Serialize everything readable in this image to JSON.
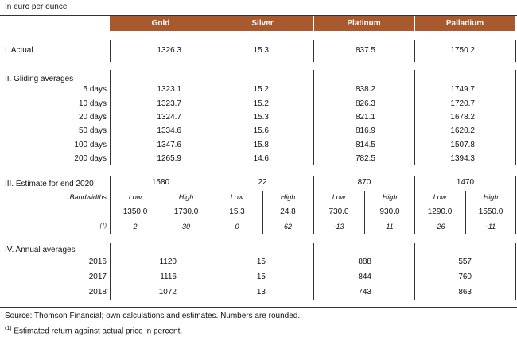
{
  "unit_label": "In euro per ounce",
  "columns": [
    "Gold",
    "Silver",
    "Platinum",
    "Palladium"
  ],
  "sections": {
    "actual": {
      "title": "I. Actual",
      "values": [
        "1326.3",
        "15.3",
        "837.5",
        "1750.2"
      ]
    },
    "gliding": {
      "title": "II. Gliding averages",
      "rows": [
        {
          "label": "5 days",
          "values": [
            "1323.1",
            "15.2",
            "838.2",
            "1749.7"
          ]
        },
        {
          "label": "10 days",
          "values": [
            "1323.7",
            "15.2",
            "826.3",
            "1720.7"
          ]
        },
        {
          "label": "20 days",
          "values": [
            "1324.7",
            "15.3",
            "821.1",
            "1678.2"
          ]
        },
        {
          "label": "50 days",
          "values": [
            "1334.6",
            "15.6",
            "816.9",
            "1620.2"
          ]
        },
        {
          "label": "100 days",
          "values": [
            "1347.6",
            "15.8",
            "814.5",
            "1507.8"
          ]
        },
        {
          "label": "200 days",
          "values": [
            "1265.9",
            "14.6",
            "782.5",
            "1394.3"
          ]
        }
      ]
    },
    "estimate": {
      "title": "III. Estimate for end 2020",
      "points": [
        "1580",
        "22",
        "870",
        "1470"
      ],
      "bandwidths_label": "Bandwidths",
      "low_label": "Low",
      "high_label": "High",
      "low_high": [
        [
          "1350.0",
          "1730.0"
        ],
        [
          "15.3",
          "24.8"
        ],
        [
          "730.0",
          "930.0"
        ],
        [
          "1290.0",
          "1550.0"
        ]
      ],
      "return_label": "(1)",
      "returns": [
        [
          "2",
          "30"
        ],
        [
          "0",
          "62"
        ],
        [
          "-13",
          "11"
        ],
        [
          "-26",
          "-11"
        ]
      ]
    },
    "annual": {
      "title": "IV. Annual averages",
      "rows": [
        {
          "label": "2016",
          "values": [
            "1120",
            "15",
            "888",
            "557"
          ]
        },
        {
          "label": "2017",
          "values": [
            "1116",
            "15",
            "844",
            "760"
          ]
        },
        {
          "label": "2018",
          "values": [
            "1072",
            "13",
            "743",
            "863"
          ]
        }
      ]
    }
  },
  "footnotes": {
    "source": "Source: Thomson Financial; own calculations and estimates. Numbers are rounded.",
    "note_marker": "(1)",
    "note": "Estimated return against actual price in percent."
  }
}
